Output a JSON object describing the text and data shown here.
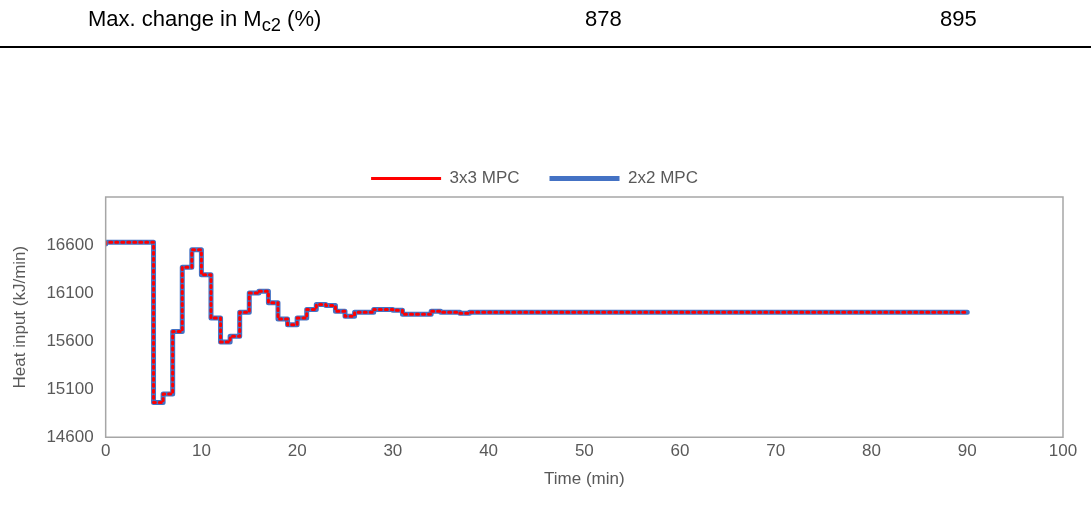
{
  "chart_data": {
    "type": "step",
    "xlabel": "Time (min)",
    "ylabel": "Heat input (kJ/min)",
    "annotations": [
      "Max. change in M$_{c2}$ (%)",
      "878",
      "895"
    ],
    "x": [
      0,
      5,
      6,
      7,
      8,
      9,
      10,
      11,
      12,
      13,
      14,
      15,
      16,
      17,
      18,
      19,
      20,
      21,
      22,
      23,
      24,
      25,
      26,
      28,
      29,
      30,
      31,
      32,
      33,
      34,
      35,
      37,
      38,
      40,
      90
    ],
    "series": [
      {
        "name": "2x2 MPC",
        "color": "#4472c4",
        "line_style": "solid",
        "values": [
          16610,
          16630,
          14960,
          15050,
          15700,
          16370,
          16550,
          16290,
          15840,
          15590,
          15650,
          15900,
          16100,
          16120,
          16000,
          15830,
          15770,
          15840,
          15930,
          15980,
          15970,
          15910,
          15860,
          15900,
          15930,
          15930,
          15920,
          15880,
          15880,
          15880,
          15910,
          15900,
          15890,
          15900,
          15900
        ]
      },
      {
        "name": "3x3 MPC",
        "color": "#ff0000",
        "line_style": "dotted",
        "values": [
          16610,
          16630,
          14960,
          15050,
          15700,
          16370,
          16550,
          16290,
          15840,
          15590,
          15650,
          15900,
          16100,
          16120,
          16000,
          15830,
          15770,
          15840,
          15930,
          15980,
          15970,
          15910,
          15860,
          15900,
          15930,
          15930,
          15920,
          15880,
          15880,
          15880,
          15910,
          15900,
          15890,
          15900,
          15900
        ]
      }
    ],
    "xlim": [
      0,
      100
    ],
    "xticks": [
      0,
      10,
      20,
      30,
      40,
      50,
      60,
      70,
      80,
      90,
      100
    ],
    "ylim": [
      14600,
      17100
    ],
    "yticks": [
      14600,
      15100,
      15600,
      16100,
      16600
    ],
    "legend": "top",
    "grid": false
  }
}
